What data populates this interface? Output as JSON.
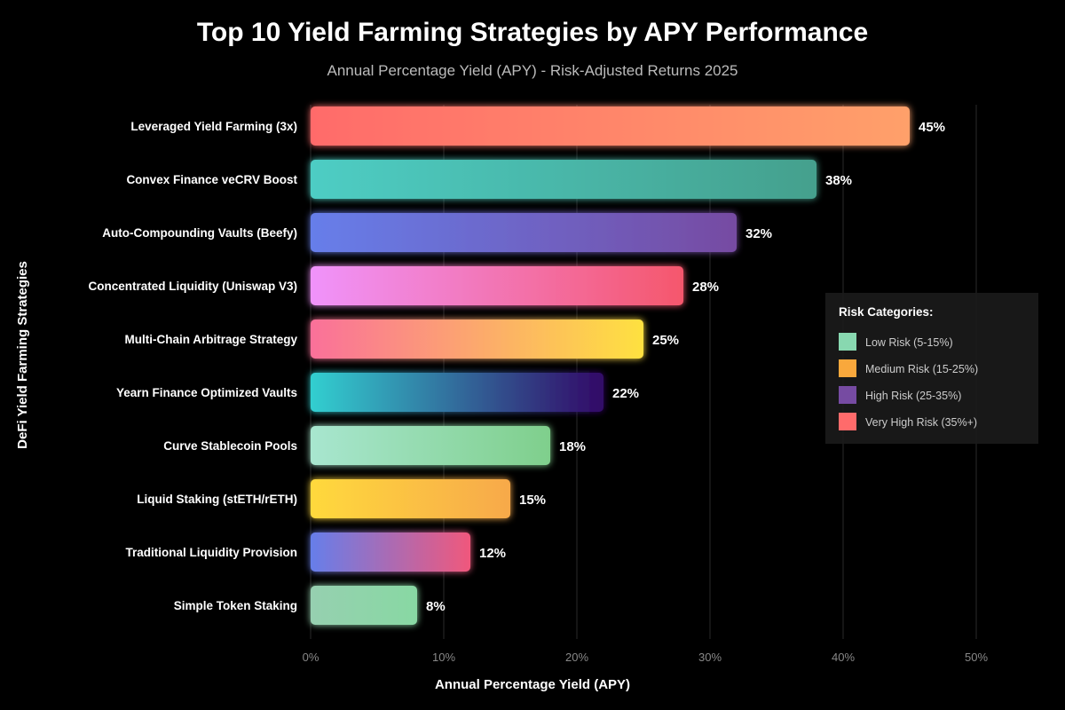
{
  "chart_data": {
    "type": "bar",
    "orientation": "horizontal",
    "title": "Top 10 Yield Farming Strategies by APY Performance",
    "subtitle": "Annual Percentage Yield (APY) - Risk-Adjusted Returns 2025",
    "xlabel": "Annual Percentage Yield (APY)",
    "ylabel": "DeFi Yield Farming Strategies",
    "xlim": [
      0,
      55
    ],
    "xticks": [
      "0%",
      "10%",
      "20%",
      "30%",
      "40%",
      "50%"
    ],
    "xtick_values": [
      0,
      10,
      20,
      30,
      40,
      50
    ],
    "grid": "vertical",
    "categories": [
      "Leveraged Yield Farming (3x)",
      "Convex Finance veCRV Boost",
      "Auto-Compounding Vaults (Beefy)",
      "Concentrated Liquidity (Uniswap V3)",
      "Multi-Chain Arbitrage Strategy",
      "Yearn Finance Optimized Vaults",
      "Curve Stablecoin Pools",
      "Liquid Staking (stETH/rETH)",
      "Traditional Liquidity Provision",
      "Simple Token Staking"
    ],
    "values": [
      45,
      38,
      32,
      28,
      25,
      22,
      18,
      15,
      12,
      8
    ],
    "data_labels": [
      "45%",
      "38%",
      "32%",
      "28%",
      "25%",
      "22%",
      "18%",
      "15%",
      "12%",
      "8%"
    ],
    "bar_gradients": [
      [
        "#ff6b6b",
        "#ffa06a"
      ],
      [
        "#4ecdc4",
        "#44a08d"
      ],
      [
        "#667eea",
        "#764ba2"
      ],
      [
        "#f093fb",
        "#f5576c"
      ],
      [
        "#fa709a",
        "#fee140"
      ],
      [
        "#30cfd0",
        "#330867"
      ],
      [
        "#a8e6cf",
        "#7fcf8c"
      ],
      [
        "#ffd93d",
        "#f7a94a"
      ],
      [
        "#667eea",
        "#f0587c"
      ],
      [
        "#96d0b0",
        "#88d8a3"
      ]
    ],
    "legend": {
      "title": "Risk Categories:",
      "placement": "top-right",
      "items": [
        {
          "label": "Low Risk (5-15%)",
          "color": "#88d8b0"
        },
        {
          "label": "Medium Risk (15-25%)",
          "color": "#f9a83c"
        },
        {
          "label": "High Risk (25-35%)",
          "color": "#764ba2"
        },
        {
          "label": "Very High Risk (35%+)",
          "color": "#ff6b6b"
        }
      ]
    }
  }
}
